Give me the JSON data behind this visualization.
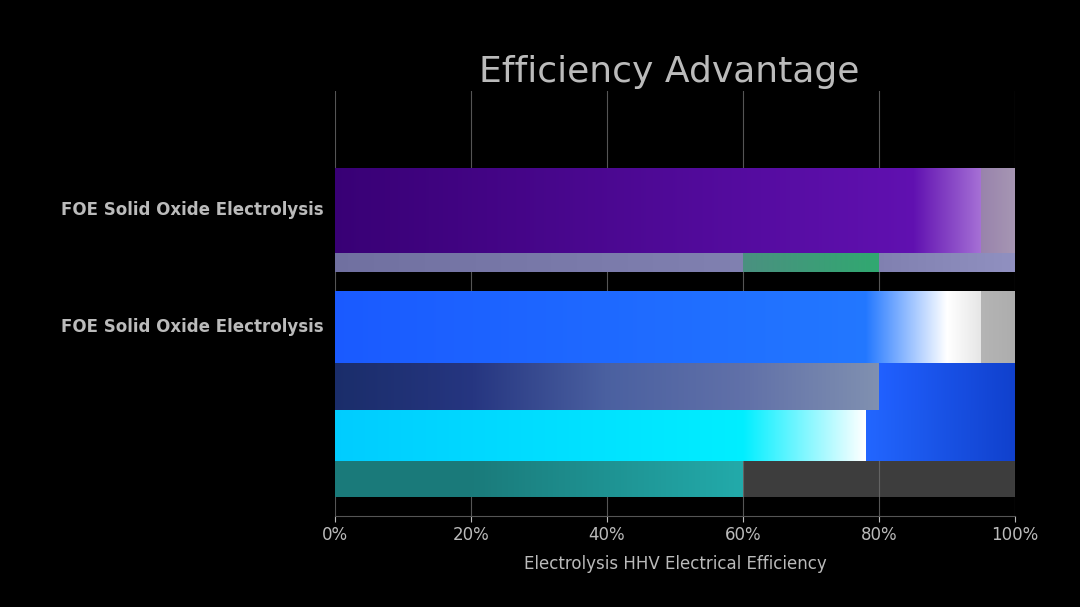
{
  "title": "Efficiency Advantage",
  "xlabel": "Electrolysis HHV Electrical Efficiency",
  "background_color": "#000000",
  "text_color": "#bbbbbb",
  "xticks": [
    0.0,
    0.2,
    0.4,
    0.6,
    0.8,
    1.0
  ],
  "xticklabels": [
    "0%",
    "20%",
    "40%",
    "60%",
    "80%",
    "100%"
  ],
  "title_fontsize": 26,
  "label_fontsize": 12,
  "tick_fontsize": 12,
  "label1": "FOE Solid Oxide Electrolysis",
  "label2": "FOE Solid Oxide Electrolysis"
}
